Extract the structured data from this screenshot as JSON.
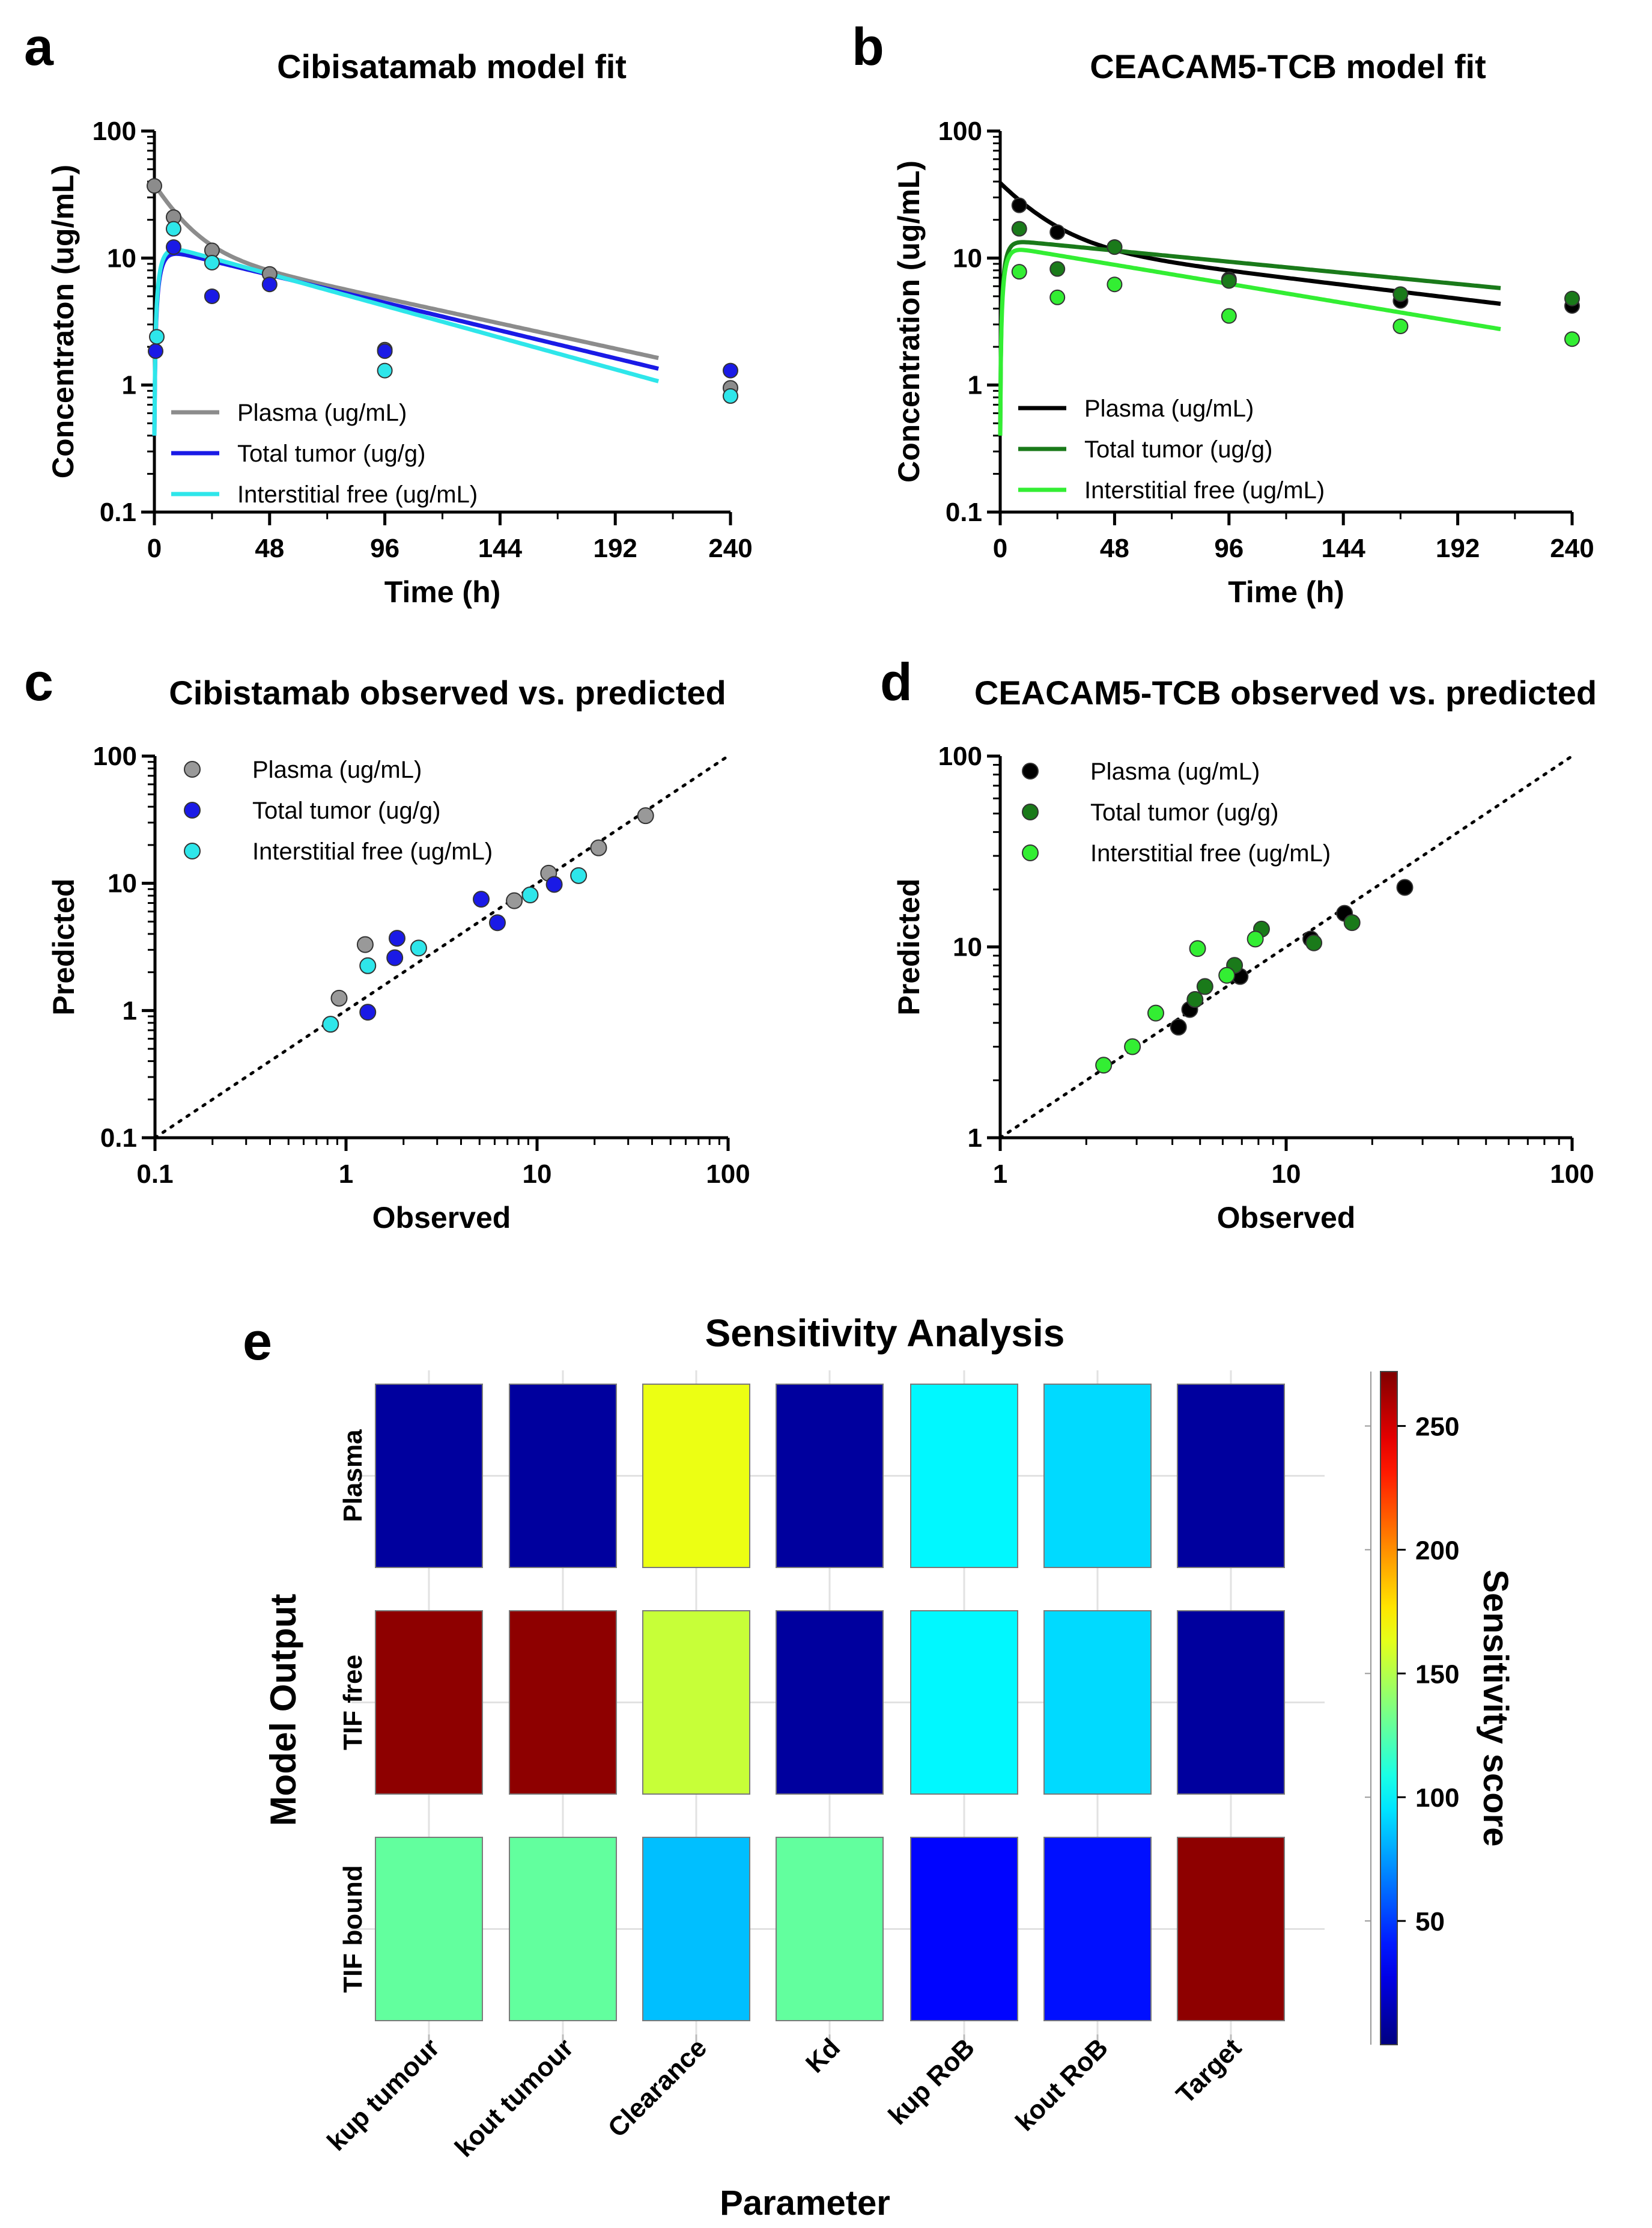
{
  "panel_labels": [
    "a",
    "b",
    "c",
    "d",
    "e"
  ],
  "chart_data": [
    {
      "id": "a",
      "type": "line",
      "title": "Cibisatamab model fit",
      "xlabel": "Time (h)",
      "ylabel": "Concentraton (ug/mL)",
      "xlim": [
        0,
        240
      ],
      "ylim": [
        0.1,
        100
      ],
      "yscale": "log",
      "xticks": [
        "0",
        "48",
        "96",
        "144",
        "192",
        "240"
      ],
      "yticks": [
        "0.1",
        "1",
        "10",
        "100"
      ],
      "legend_position": "bottom-left",
      "series": [
        {
          "name": "Plasma (ug/mL)",
          "color": "#8c8c8c",
          "obs_x": [
            0,
            8,
            24,
            48,
            96,
            240
          ],
          "obs_y": [
            37,
            21,
            11.5,
            7.5,
            1.9,
            0.95
          ],
          "fit": {
            "model": "biexp",
            "A": 26,
            "a": 0.09,
            "B": 12,
            "b": 0.0095
          }
        },
        {
          "name": "Total tumor (ug/g)",
          "color": "#1a1ae6",
          "obs_x": [
            0.5,
            8,
            24,
            48,
            96,
            240
          ],
          "obs_y": [
            1.85,
            12.2,
            5,
            6.2,
            1.85,
            1.3
          ],
          "fit": {
            "model": "absorb",
            "A": 12.2,
            "k": 0.0105,
            "ka": 0.4
          }
        },
        {
          "name": "Interstitial free (ug/mL)",
          "color": "#2ee6ea",
          "obs_x": [
            1,
            8,
            24,
            96,
            240
          ],
          "obs_y": [
            2.4,
            17,
            9.2,
            1.3,
            0.82
          ],
          "fit": {
            "model": "absorb",
            "A": 13.3,
            "k": 0.012,
            "ka": 0.4
          }
        }
      ]
    },
    {
      "id": "b",
      "type": "line",
      "title": "CEACAM5-TCB model fit",
      "xlabel": "Time (h)",
      "ylabel": "Concentration (ug/mL)",
      "xlim": [
        0,
        240
      ],
      "ylim": [
        0.1,
        100
      ],
      "yscale": "log",
      "xticks": [
        "0",
        "48",
        "96",
        "144",
        "192",
        "240"
      ],
      "yticks": [
        "0.1",
        "1",
        "10",
        "100"
      ],
      "legend_position": "bottom-left",
      "series": [
        {
          "name": "Plasma (ug/mL)",
          "color": "#000000",
          "obs_x": [
            8,
            24,
            48,
            96,
            168,
            240
          ],
          "obs_y": [
            26,
            16,
            12.2,
            6.8,
            4.6,
            4.2
          ],
          "fit": {
            "model": "biexp",
            "A": 26,
            "a": 0.06,
            "B": 13,
            "b": 0.0052
          }
        },
        {
          "name": "Total tumor (ug/g)",
          "color": "#1a7a1a",
          "obs_x": [
            8,
            24,
            48,
            96,
            168,
            240
          ],
          "obs_y": [
            17,
            8.2,
            12.2,
            6.6,
            5.2,
            4.8
          ],
          "fit": {
            "model": "absorb",
            "A": 14,
            "k": 0.0042,
            "ka": 0.5
          }
        },
        {
          "name": "Interstitial free (ug/mL)",
          "color": "#33ee33",
          "obs_x": [
            8,
            24,
            48,
            96,
            168,
            240
          ],
          "obs_y": [
            7.8,
            4.9,
            6.2,
            3.5,
            2.9,
            2.3
          ],
          "fit": {
            "model": "absorb",
            "A": 12.5,
            "k": 0.0072,
            "ka": 0.5
          }
        }
      ]
    },
    {
      "id": "c",
      "type": "scatter",
      "title": "Cibistamab observed vs. predicted",
      "xlabel": "Observed",
      "ylabel": "Predicted",
      "xscale": "log",
      "yscale": "log",
      "xlim": [
        0.1,
        100
      ],
      "ylim": [
        0.1,
        100
      ],
      "xticks": [
        "0.1",
        "1",
        "10",
        "100"
      ],
      "yticks": [
        "0.1",
        "1",
        "10",
        "100"
      ],
      "identity_line": true,
      "legend_position": "top-left",
      "series": [
        {
          "name": "Plasma (ug/mL)",
          "color": "#999999",
          "x": [
            37,
            21,
            11.5,
            7.6,
            1.26,
            0.92
          ],
          "y": [
            34,
            19,
            12,
            7.3,
            3.3,
            1.25
          ]
        },
        {
          "name": "Total tumor (ug/g)",
          "color": "#1a1ae6",
          "x": [
            12.3,
            6.2,
            5.1,
            1.85,
            1.8,
            1.3
          ],
          "y": [
            9.8,
            4.9,
            7.5,
            3.7,
            2.6,
            0.97
          ]
        },
        {
          "name": "Interstitial free (ug/mL)",
          "color": "#2ee6ea",
          "x": [
            16.5,
            9.2,
            2.4,
            1.3,
            0.83
          ],
          "y": [
            11.5,
            8.1,
            3.1,
            2.25,
            0.78
          ]
        }
      ]
    },
    {
      "id": "d",
      "type": "scatter",
      "title": "CEACAM5-TCB observed vs. predicted",
      "xlabel": "Observed",
      "ylabel": "Predicted",
      "xscale": "log",
      "yscale": "log",
      "xlim": [
        1,
        100
      ],
      "ylim": [
        1,
        100
      ],
      "xticks": [
        "1",
        "10",
        "100"
      ],
      "yticks": [
        "1",
        "10",
        "100"
      ],
      "identity_line": true,
      "legend_position": "top-left",
      "series": [
        {
          "name": "Plasma (ug/mL)",
          "color": "#000000",
          "x": [
            26,
            16,
            12.2,
            6.9,
            4.6,
            4.2
          ],
          "y": [
            20.5,
            15,
            11,
            7,
            4.7,
            3.8
          ]
        },
        {
          "name": "Total tumor (ug/g)",
          "color": "#1a7a1a",
          "x": [
            17,
            12.5,
            8.2,
            6.6,
            5.2,
            4.8
          ],
          "y": [
            13.4,
            10.5,
            12.4,
            8,
            6.2,
            5.3
          ]
        },
        {
          "name": "Interstitial free (ug/mL)",
          "color": "#33ee33",
          "x": [
            7.8,
            4.9,
            6.2,
            3.5,
            2.9,
            2.3
          ],
          "y": [
            11,
            9.8,
            7.1,
            4.5,
            3,
            2.4
          ]
        }
      ]
    },
    {
      "id": "e",
      "type": "heatmap",
      "title": "Sensitivity Analysis",
      "xlabel": "Parameter",
      "ylabel": "Model Output",
      "colorbar_label": "Sensitivity score",
      "colorbar_range": [
        0,
        272
      ],
      "colorbar_ticks": [
        "50",
        "100",
        "150",
        "200",
        "250"
      ],
      "rows": [
        "Plasma",
        "TIF free",
        "TIF bound"
      ],
      "columns": [
        "kup tumour",
        "kout tumour",
        "Clearance",
        "Kd",
        "kup RoB",
        "kout RoB",
        "Target"
      ],
      "values": [
        [
          8,
          8,
          165,
          8,
          100,
          92,
          8
        ],
        [
          268,
          268,
          155,
          8,
          100,
          92,
          8
        ],
        [
          128,
          128,
          85,
          128,
          35,
          38,
          268
        ]
      ]
    }
  ]
}
